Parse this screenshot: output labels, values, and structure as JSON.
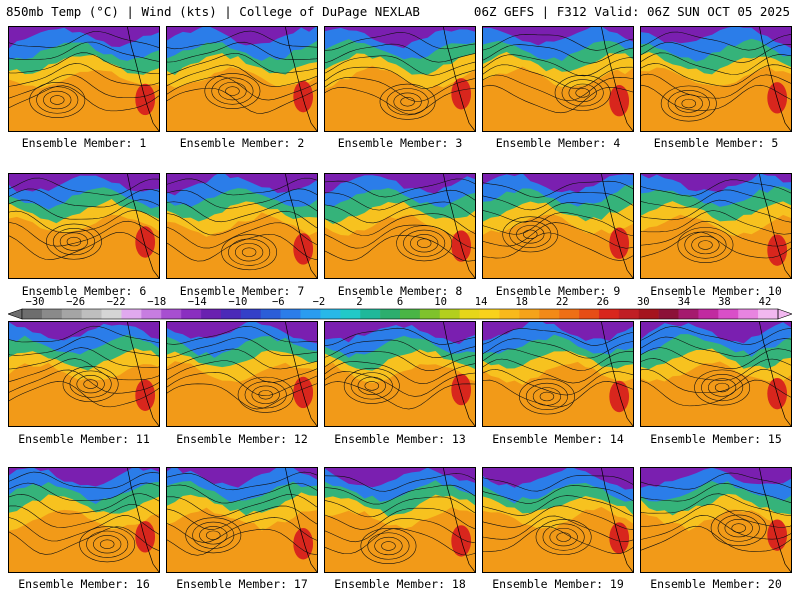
{
  "header": {
    "left_title": "850mb Temp (°C) | Wind (kts) | College of DuPage NEXLAB",
    "right_title": "06Z GEFS | F312 Valid: 06Z SUN OCT 05 2025"
  },
  "map_colors": {
    "cold": "#7a1fb0",
    "cool": "#2b7de9",
    "mild": "#35b37a",
    "warm": "#f7c21f",
    "hot": "#f29a18",
    "very_hot": "#d8261d",
    "contour": "#111111"
  },
  "panels": [
    {
      "label": "Ensemble Member: 1"
    },
    {
      "label": "Ensemble Member: 2"
    },
    {
      "label": "Ensemble Member: 3"
    },
    {
      "label": "Ensemble Member: 4"
    },
    {
      "label": "Ensemble Member: 5"
    },
    {
      "label": "Ensemble Member: 6"
    },
    {
      "label": "Ensemble Member: 7"
    },
    {
      "label": "Ensemble Member: 8"
    },
    {
      "label": "Ensemble Member: 9"
    },
    {
      "label": "Ensemble Member: 10"
    },
    {
      "label": "Ensemble Member: 11"
    },
    {
      "label": "Ensemble Member: 12"
    },
    {
      "label": "Ensemble Member: 13"
    },
    {
      "label": "Ensemble Member: 14"
    },
    {
      "label": "Ensemble Member: 15"
    },
    {
      "label": "Ensemble Member: 16"
    },
    {
      "label": "Ensemble Member: 17"
    },
    {
      "label": "Ensemble Member: 18"
    },
    {
      "label": "Ensemble Member: 19"
    },
    {
      "label": "Ensemble Member: 20"
    }
  ],
  "colorbar": {
    "labels": [
      "-30",
      "-26",
      "-22",
      "-18",
      "-14",
      "-10",
      "-6",
      "-2",
      "2",
      "6",
      "10",
      "14",
      "18",
      "22",
      "26",
      "30",
      "34",
      "38",
      "42"
    ],
    "colors": [
      "#6e6e6e",
      "#8a8a8a",
      "#a5a5a5",
      "#bebebe",
      "#d5d5d5",
      "#e0a9ee",
      "#c77de0",
      "#a74fd0",
      "#8a2fc0",
      "#6a21b0",
      "#4b2ab8",
      "#3440c8",
      "#2b5ed8",
      "#2b7de9",
      "#2a9cf0",
      "#28b8e8",
      "#22c9c8",
      "#1fb89a",
      "#2cae6e",
      "#49b545",
      "#7fc22c",
      "#b3cf1e",
      "#e6d61a",
      "#f8d21c",
      "#f8b91c",
      "#f5a31a",
      "#f28a18",
      "#ee6f16",
      "#e64d16",
      "#d8261d",
      "#c01e24",
      "#a5141e",
      "#8c1238",
      "#a51a6e",
      "#c12aa0",
      "#d94fc8",
      "#e884e0",
      "#f2b8f0"
    ]
  }
}
